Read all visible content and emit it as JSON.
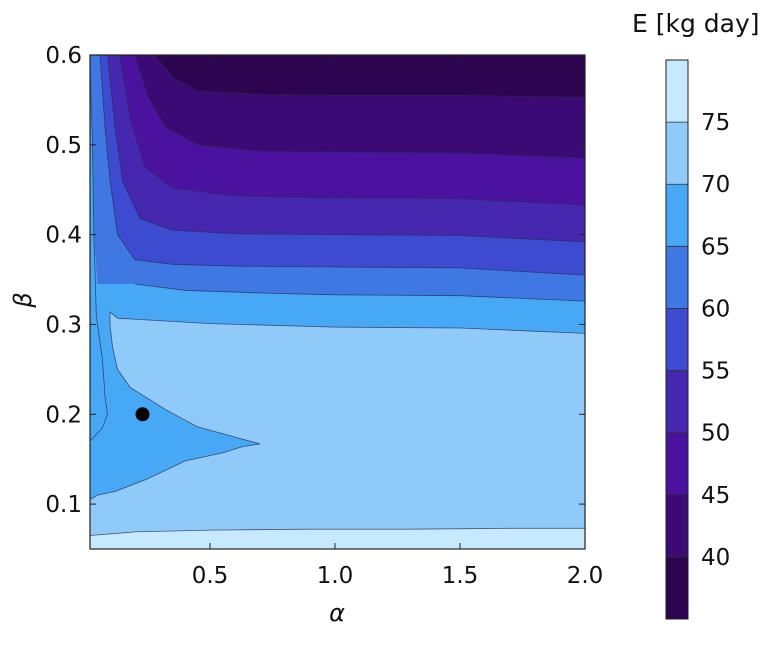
{
  "chart_data": {
    "type": "contour",
    "xlabel": "α",
    "ylabel": "β",
    "colorbar_label": "E [kg day]",
    "xlim": [
      0.02,
      2.0
    ],
    "ylim": [
      0.05,
      0.6
    ],
    "x_ticks": [
      0.5,
      1.0,
      1.5,
      2.0
    ],
    "x_tick_labels": [
      "0.5",
      "1.0",
      "1.5",
      "2.0"
    ],
    "y_ticks": [
      0.1,
      0.2,
      0.3,
      0.4,
      0.5,
      0.6
    ],
    "y_tick_labels": [
      "0.1",
      "0.2",
      "0.3",
      "0.4",
      "0.5",
      "0.6"
    ],
    "levels": [
      35,
      40,
      45,
      50,
      55,
      60,
      65,
      70,
      75,
      80
    ],
    "colorbar_ticks": [
      40,
      45,
      50,
      55,
      60,
      65,
      70,
      75
    ],
    "colorbar_tick_labels": [
      "40",
      "45",
      "50",
      "55",
      "60",
      "65",
      "70",
      "75"
    ],
    "band_colors": [
      "#2c0450",
      "#3b0a75",
      "#4b12a0",
      "#4628b0",
      "#3c4bd0",
      "#3f78e3",
      "#47a8f5",
      "#8fcaf8",
      "#c6e9fd"
    ],
    "grid": false,
    "colormap_reversed": true,
    "marker": {
      "x": 0.23,
      "y": 0.2,
      "color": "#000000"
    },
    "contour_lines": [
      {
        "level": 75,
        "points": [
          [
            0.02,
            0.065
          ],
          [
            0.2,
            0.069
          ],
          [
            0.5,
            0.071
          ],
          [
            0.9,
            0.072
          ],
          [
            1.3,
            0.072
          ],
          [
            1.7,
            0.073
          ],
          [
            2.0,
            0.073
          ]
        ]
      },
      {
        "level": 70,
        "points": [
          [
            0.02,
            0.105
          ],
          [
            0.05,
            0.11
          ],
          [
            0.12,
            0.114
          ],
          [
            0.25,
            0.128
          ],
          [
            0.4,
            0.148
          ],
          [
            0.55,
            0.157
          ],
          [
            0.63,
            0.164
          ],
          [
            0.7,
            0.167
          ]
        ]
      },
      {
        "level": 70,
        "points": [
          [
            0.7,
            0.167
          ],
          [
            0.58,
            0.176
          ],
          [
            0.45,
            0.186
          ],
          [
            0.33,
            0.204
          ],
          [
            0.18,
            0.23
          ],
          [
            0.13,
            0.25
          ],
          [
            0.11,
            0.275
          ],
          [
            0.1,
            0.3
          ],
          [
            0.1,
            0.314
          ],
          [
            0.13,
            0.307
          ],
          [
            0.5,
            0.301
          ],
          [
            1.0,
            0.297
          ],
          [
            1.5,
            0.296
          ],
          [
            2.0,
            0.29
          ]
        ]
      },
      {
        "level": 65,
        "points": [
          [
            0.02,
            0.59
          ],
          [
            0.03,
            0.5
          ],
          [
            0.035,
            0.4
          ],
          [
            0.04,
            0.36
          ],
          [
            0.045,
            0.31
          ],
          [
            0.06,
            0.28
          ],
          [
            0.07,
            0.26
          ],
          [
            0.08,
            0.22
          ],
          [
            0.09,
            0.2
          ],
          [
            0.07,
            0.185
          ],
          [
            0.02,
            0.17
          ]
        ]
      },
      {
        "level": 65,
        "points": [
          [
            0.2,
            0.345
          ],
          [
            0.4,
            0.338
          ],
          [
            0.7,
            0.335
          ],
          [
            1.0,
            0.333
          ],
          [
            1.5,
            0.332
          ],
          [
            2.0,
            0.326
          ]
        ]
      },
      {
        "level": 60,
        "points": [
          [
            0.06,
            0.6
          ],
          [
            0.08,
            0.52
          ],
          [
            0.1,
            0.46
          ],
          [
            0.13,
            0.4
          ],
          [
            0.2,
            0.372
          ],
          [
            0.35,
            0.367
          ],
          [
            0.6,
            0.365
          ],
          [
            1.0,
            0.364
          ],
          [
            1.5,
            0.363
          ],
          [
            2.0,
            0.355
          ]
        ]
      },
      {
        "level": 55,
        "points": [
          [
            0.09,
            0.6
          ],
          [
            0.12,
            0.52
          ],
          [
            0.15,
            0.46
          ],
          [
            0.22,
            0.418
          ],
          [
            0.35,
            0.405
          ],
          [
            0.6,
            0.401
          ],
          [
            1.0,
            0.4
          ],
          [
            1.5,
            0.399
          ],
          [
            2.0,
            0.392
          ]
        ]
      },
      {
        "level": 50,
        "points": [
          [
            0.14,
            0.6
          ],
          [
            0.18,
            0.53
          ],
          [
            0.24,
            0.475
          ],
          [
            0.35,
            0.452
          ],
          [
            0.6,
            0.443
          ],
          [
            1.0,
            0.441
          ],
          [
            1.5,
            0.44
          ],
          [
            2.0,
            0.433
          ]
        ]
      },
      {
        "level": 45,
        "points": [
          [
            0.2,
            0.6
          ],
          [
            0.25,
            0.555
          ],
          [
            0.32,
            0.52
          ],
          [
            0.45,
            0.5
          ],
          [
            0.7,
            0.493
          ],
          [
            1.0,
            0.492
          ],
          [
            1.5,
            0.491
          ],
          [
            2.0,
            0.485
          ]
        ]
      },
      {
        "level": 40,
        "points": [
          [
            0.28,
            0.6
          ],
          [
            0.35,
            0.575
          ],
          [
            0.45,
            0.56
          ],
          [
            0.7,
            0.556
          ],
          [
            1.0,
            0.555
          ],
          [
            1.5,
            0.555
          ],
          [
            2.0,
            0.553
          ]
        ]
      }
    ]
  }
}
